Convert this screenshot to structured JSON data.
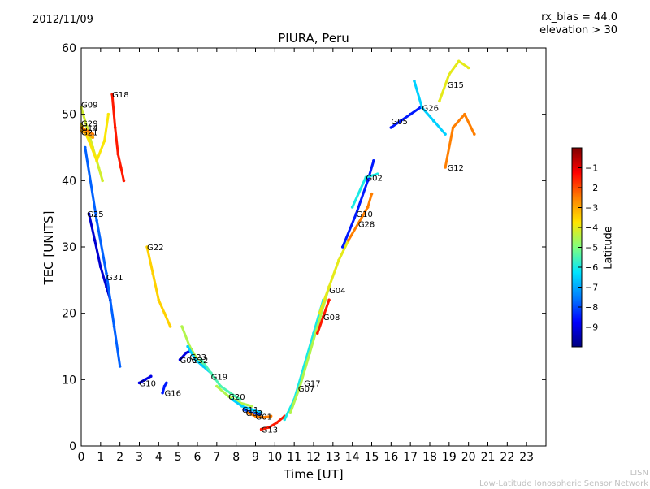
{
  "header": {
    "date": "2012/11/09",
    "rx_bias": "rx_bias = 44.0",
    "elevation": "elevation > 30"
  },
  "footer": {
    "credit_short": "LISN",
    "credit_long": "Low-Latitude Ionospheric Sensor Network"
  },
  "colorbar": {
    "label": "Latitude",
    "ticks": [
      -1,
      -2,
      -3,
      -4,
      -5,
      -6,
      -7,
      -8,
      -9
    ],
    "range": [
      -10,
      0
    ],
    "colors": [
      "#00007f",
      "#0000ff",
      "#007fff",
      "#00e5ff",
      "#7fff7f",
      "#ffe500",
      "#ff7f00",
      "#ff0000",
      "#7f0000"
    ]
  },
  "chart_data": {
    "type": "scatter",
    "title": "PIURA, Peru",
    "xlabel": "Time [UT]",
    "ylabel": "TEC [UNITS]",
    "xlim": [
      0,
      24
    ],
    "ylim": [
      0,
      60
    ],
    "xticks": [
      0,
      1,
      2,
      3,
      4,
      5,
      6,
      7,
      8,
      9,
      10,
      11,
      12,
      13,
      14,
      15,
      16,
      17,
      18,
      19,
      20,
      21,
      22,
      23
    ],
    "yticks": [
      0,
      10,
      20,
      30,
      40,
      50,
      60
    ],
    "color_by": "Latitude",
    "series": [
      {
        "name": "G09",
        "label_at": [
          0.0,
          51.5
        ],
        "latitude": -4.2,
        "x": [
          0.0,
          0.3,
          0.6,
          0.9,
          1.1
        ],
        "y": [
          51,
          48,
          45,
          42,
          40
        ]
      },
      {
        "name": "G18",
        "label_at": [
          1.6,
          53.0
        ],
        "latitude": -1.5,
        "x": [
          1.6,
          1.75,
          1.9,
          2.05,
          2.2
        ],
        "y": [
          53,
          48,
          44,
          42,
          40
        ]
      },
      {
        "name": "G29",
        "label_at": [
          0.0,
          48.7
        ],
        "latitude": -3.8,
        "x": [
          0.0,
          0.4,
          0.8,
          1.2,
          1.4
        ],
        "y": [
          48.5,
          46,
          43,
          46,
          50
        ]
      },
      {
        "name": "G14",
        "label_at": [
          0.0,
          48.0
        ],
        "latitude": -2.5,
        "x": [
          0.0,
          0.3,
          0.6
        ],
        "y": [
          48,
          47.5,
          47
        ]
      },
      {
        "name": "G21",
        "label_at": [
          0.0,
          47.3
        ],
        "latitude": -3.0,
        "x": [
          0.0,
          0.3,
          0.6
        ],
        "y": [
          47.5,
          47,
          46.5
        ]
      },
      {
        "name": "G25",
        "label_at": [
          0.3,
          35.0
        ],
        "latitude": -9.2,
        "x": [
          0.4,
          0.7,
          1.0,
          1.3,
          1.5
        ],
        "y": [
          35,
          31,
          27,
          24,
          22
        ]
      },
      {
        "name": "G22",
        "label_at": [
          3.4,
          30.0
        ],
        "latitude": -3.5,
        "x": [
          3.4,
          3.7,
          4.0,
          4.3,
          4.6
        ],
        "y": [
          30,
          26,
          22,
          20,
          18
        ]
      },
      {
        "name": "G31",
        "label_at": [
          1.3,
          25.5
        ],
        "latitude": -7.8,
        "x": [
          0.2,
          0.8,
          1.3,
          1.7,
          2.0
        ],
        "y": [
          45,
          34,
          26,
          18,
          12
        ]
      },
      {
        "name": "G10",
        "label_at": [
          3.0,
          9.5
        ],
        "latitude": -9.0,
        "x": [
          3.0,
          3.3,
          3.6
        ],
        "y": [
          9.5,
          10,
          10.5
        ]
      },
      {
        "name": "G16",
        "label_at": [
          4.3,
          8.0
        ],
        "latitude": -8.5,
        "x": [
          4.2,
          4.3,
          4.4
        ],
        "y": [
          8,
          9,
          9.5
        ]
      },
      {
        "name": "G06",
        "label_at": [
          5.1,
          13.0
        ],
        "latitude": -9.0,
        "x": [
          5.1,
          5.4,
          5.7
        ],
        "y": [
          13,
          14,
          14.5
        ]
      },
      {
        "name": "G23",
        "label_at": [
          5.6,
          13.5
        ],
        "latitude": -4.5,
        "x": [
          5.2,
          5.6,
          6.0,
          6.4
        ],
        "y": [
          18,
          15,
          13,
          12
        ]
      },
      {
        "name": "G32",
        "label_at": [
          5.7,
          13.0
        ],
        "latitude": -6.5,
        "x": [
          5.5,
          5.9,
          6.3,
          6.7
        ],
        "y": [
          15,
          13,
          12,
          11
        ]
      },
      {
        "name": "G19",
        "label_at": [
          6.7,
          10.5
        ],
        "latitude": -5.5,
        "x": [
          6.2,
          6.7,
          7.2,
          7.7,
          8.2
        ],
        "y": [
          13,
          11,
          9,
          8,
          7
        ]
      },
      {
        "name": "G20",
        "label_at": [
          7.6,
          7.5
        ],
        "latitude": -4.5,
        "x": [
          7.0,
          7.6,
          8.2,
          8.8
        ],
        "y": [
          9,
          7.5,
          6.5,
          6
        ]
      },
      {
        "name": "G11",
        "label_at": [
          8.3,
          5.5
        ],
        "latitude": -6.5,
        "x": [
          7.8,
          8.3,
          8.8,
          9.3
        ],
        "y": [
          7,
          6,
          5.5,
          5
        ]
      },
      {
        "name": "G03",
        "label_at": [
          8.5,
          5.0
        ],
        "latitude": -8.0,
        "x": [
          8.4,
          8.8,
          9.2
        ],
        "y": [
          5.5,
          5,
          4.8
        ]
      },
      {
        "name": "G01",
        "label_at": [
          9.0,
          4.5
        ],
        "latitude": -2.5,
        "x": [
          8.6,
          9.0,
          9.4,
          9.8
        ],
        "y": [
          5,
          4.5,
          4.3,
          4.5
        ]
      },
      {
        "name": "G13",
        "label_at": [
          9.3,
          2.5
        ],
        "latitude": -1.5,
        "x": [
          9.3,
          9.7,
          10.1,
          10.5
        ],
        "y": [
          2.5,
          2.8,
          3.5,
          4.5
        ]
      },
      {
        "name": "G07",
        "label_at": [
          11.2,
          8.7
        ],
        "latitude": -6.0,
        "x": [
          10.5,
          11.0,
          11.5,
          12.0,
          12.5
        ],
        "y": [
          4,
          7,
          12,
          17,
          22
        ]
      },
      {
        "name": "G17",
        "label_at": [
          11.5,
          9.5
        ],
        "latitude": -4.5,
        "x": [
          10.8,
          11.3,
          11.8,
          12.3,
          12.8
        ],
        "y": [
          5,
          9,
          14,
          19,
          24
        ]
      },
      {
        "name": "G08",
        "label_at": [
          12.5,
          19.5
        ],
        "latitude": -1.5,
        "x": [
          12.2,
          12.5,
          12.8
        ],
        "y": [
          17,
          19.5,
          22
        ]
      },
      {
        "name": "G04",
        "label_at": [
          12.8,
          23.5
        ],
        "latitude": -4.0,
        "x": [
          12.3,
          12.8,
          13.3,
          13.8
        ],
        "y": [
          20,
          24,
          28,
          31
        ]
      },
      {
        "name": "G10",
        "label_at": [
          14.2,
          35.0
        ],
        "latitude": -8.5,
        "x": [
          13.5,
          14.2,
          14.8,
          15.1
        ],
        "y": [
          30,
          35,
          40,
          43
        ]
      },
      {
        "name": "G28",
        "label_at": [
          14.3,
          33.5
        ],
        "latitude": -2.5,
        "x": [
          13.8,
          14.3,
          14.8,
          15.0
        ],
        "y": [
          31,
          33.5,
          36,
          38
        ]
      },
      {
        "name": "G02",
        "label_at": [
          14.7,
          40.5
        ],
        "latitude": -6.0,
        "x": [
          14.0,
          14.7,
          15.3
        ],
        "y": [
          36,
          40.5,
          41
        ]
      },
      {
        "name": "G05",
        "label_at": [
          16.0,
          49.0
        ],
        "latitude": -8.5,
        "x": [
          16.0,
          16.5,
          17.0,
          17.5
        ],
        "y": [
          48,
          49,
          50,
          51
        ]
      },
      {
        "name": "G26",
        "label_at": [
          17.6,
          51.0
        ],
        "latitude": -6.5,
        "x": [
          17.2,
          17.6,
          18.2,
          18.8
        ],
        "y": [
          55,
          51,
          49,
          47
        ]
      },
      {
        "name": "G15",
        "label_at": [
          18.9,
          54.5
        ],
        "latitude": -4.0,
        "x": [
          18.5,
          19.0,
          19.5,
          20.0
        ],
        "y": [
          52,
          56,
          58,
          57
        ]
      },
      {
        "name": "G12",
        "label_at": [
          18.9,
          42.0
        ],
        "latitude": -2.5,
        "x": [
          18.8,
          19.2,
          19.8,
          20.3
        ],
        "y": [
          42,
          48,
          50,
          47
        ]
      }
    ]
  }
}
